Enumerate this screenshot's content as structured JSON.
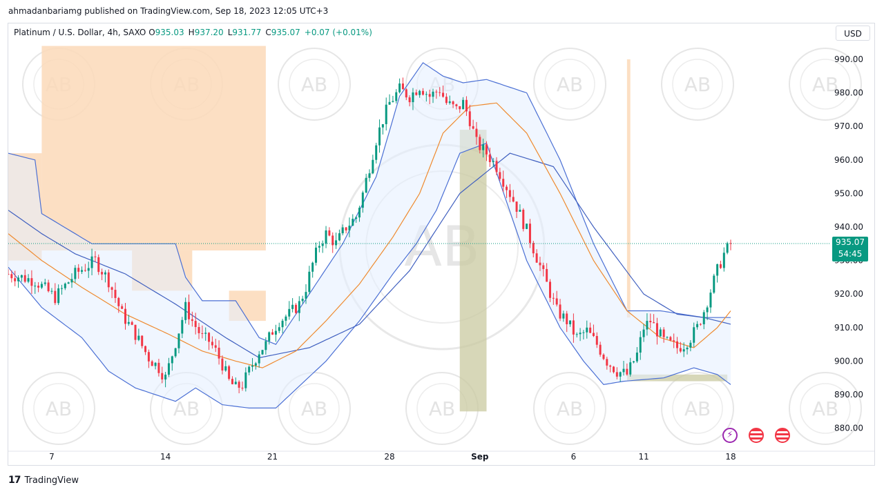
{
  "header": {
    "published": "ahmadanbariamg published on TradingView.com, Sep 18, 2023 12:05 UTC+3"
  },
  "legend": {
    "symbol": "Platinum / U.S. Dollar, 4h, SAXO",
    "open_label": "O",
    "open": "935.03",
    "high_label": "H",
    "high": "937.20",
    "low_label": "L",
    "low": "931.77",
    "close_label": "C",
    "close": "935.07",
    "change": "+0.07 (+0.01%)"
  },
  "currency_button": "USD",
  "price_tag": {
    "price": "935.07",
    "countdown": "54:45"
  },
  "footer": {
    "brand": "TradingView",
    "logo": "17"
  },
  "watermark": {
    "text": "AB"
  },
  "icons": [
    "lightning-icon",
    "us-flag-icon",
    "us-flag-icon"
  ],
  "colors": {
    "up": "#089981",
    "down": "#f23645",
    "band": "#4a6fd4",
    "ma": "#ef8a2f",
    "zone_peach": "#fcd9b8",
    "zone_olive": "#c9c9a0"
  },
  "chart_data": {
    "type": "candlestick",
    "title": "Platinum / U.S. Dollar, 4h, SAXO",
    "ylim": [
      876,
      998
    ],
    "y_ticks": [
      "990.00",
      "980.00",
      "970.00",
      "960.00",
      "950.00",
      "940.00",
      "930.00",
      "920.00",
      "910.00",
      "900.00",
      "890.00",
      "880.00"
    ],
    "x_ticks": [
      "7",
      "14",
      "21",
      "28",
      "Sep",
      "6",
      "11",
      "18"
    ],
    "anchors": [
      [
        0,
        926
      ],
      [
        8,
        924
      ],
      [
        14,
        919
      ],
      [
        20,
        926
      ],
      [
        26,
        930
      ],
      [
        30,
        924
      ],
      [
        34,
        914
      ],
      [
        38,
        908
      ],
      [
        42,
        901
      ],
      [
        45,
        898
      ],
      [
        47,
        895
      ],
      [
        49,
        902
      ],
      [
        51,
        909
      ],
      [
        53,
        916
      ],
      [
        55,
        912
      ],
      [
        58,
        907
      ],
      [
        60,
        906
      ],
      [
        62,
        903
      ],
      [
        64,
        899
      ],
      [
        66,
        894
      ],
      [
        68,
        892
      ],
      [
        70,
        893
      ],
      [
        73,
        899
      ],
      [
        75,
        903
      ],
      [
        77,
        905
      ],
      [
        79,
        909
      ],
      [
        81,
        912
      ],
      [
        84,
        914
      ],
      [
        87,
        917
      ],
      [
        89,
        922
      ],
      [
        91,
        929
      ],
      [
        93,
        935
      ],
      [
        95,
        938
      ],
      [
        98,
        935
      ],
      [
        101,
        940
      ],
      [
        104,
        943
      ],
      [
        106,
        950
      ],
      [
        108,
        958
      ],
      [
        110,
        966
      ],
      [
        112,
        972
      ],
      [
        114,
        977
      ],
      [
        117,
        981
      ],
      [
        120,
        979
      ],
      [
        123,
        982
      ],
      [
        126,
        979
      ],
      [
        129,
        981
      ],
      [
        131,
        977
      ],
      [
        134,
        975
      ],
      [
        136,
        977
      ],
      [
        138,
        972
      ],
      [
        140,
        965
      ],
      [
        143,
        962
      ],
      [
        146,
        958
      ],
      [
        149,
        952
      ],
      [
        152,
        946
      ],
      [
        155,
        939
      ],
      [
        158,
        931
      ],
      [
        161,
        923
      ],
      [
        164,
        915
      ],
      [
        167,
        912
      ],
      [
        170,
        907
      ],
      [
        173,
        909
      ],
      [
        176,
        905
      ],
      [
        179,
        900
      ],
      [
        182,
        897
      ],
      [
        185,
        896
      ],
      [
        188,
        902
      ],
      [
        190,
        910
      ],
      [
        192,
        912
      ],
      [
        194,
        909
      ],
      [
        196,
        906
      ],
      [
        198,
        905
      ],
      [
        200,
        904
      ],
      [
        202,
        905
      ],
      [
        204,
        907
      ],
      [
        206,
        910
      ],
      [
        208,
        915
      ],
      [
        210,
        921
      ],
      [
        212,
        927
      ],
      [
        214,
        932
      ],
      [
        216,
        935
      ]
    ],
    "bands": {
      "upper": [
        [
          0,
          962
        ],
        [
          8,
          960
        ],
        [
          10,
          944
        ],
        [
          25,
          935
        ],
        [
          38,
          935
        ],
        [
          50,
          935
        ],
        [
          53,
          925
        ],
        [
          58,
          918
        ],
        [
          68,
          918
        ],
        [
          75,
          907
        ],
        [
          80,
          905
        ],
        [
          88,
          917
        ],
        [
          100,
          935
        ],
        [
          110,
          955
        ],
        [
          117,
          979
        ],
        [
          124,
          989
        ],
        [
          130,
          985
        ],
        [
          136,
          983
        ],
        [
          143,
          984
        ],
        [
          155,
          980
        ],
        [
          165,
          960
        ],
        [
          175,
          935
        ],
        [
          185,
          915
        ],
        [
          195,
          915
        ],
        [
          208,
          913
        ],
        [
          216,
          913
        ]
      ],
      "middle": [
        [
          0,
          945
        ],
        [
          10,
          938
        ],
        [
          20,
          932
        ],
        [
          35,
          926
        ],
        [
          50,
          917
        ],
        [
          65,
          907
        ],
        [
          75,
          901
        ],
        [
          90,
          904
        ],
        [
          105,
          911
        ],
        [
          120,
          927
        ],
        [
          135,
          950
        ],
        [
          150,
          962
        ],
        [
          163,
          958
        ],
        [
          175,
          940
        ],
        [
          190,
          920
        ],
        [
          200,
          914
        ],
        [
          208,
          913
        ],
        [
          216,
          911
        ]
      ],
      "lower": [
        [
          0,
          928
        ],
        [
          10,
          916
        ],
        [
          22,
          907
        ],
        [
          30,
          897
        ],
        [
          38,
          892
        ],
        [
          50,
          888
        ],
        [
          56,
          892
        ],
        [
          64,
          887
        ],
        [
          72,
          886
        ],
        [
          80,
          886
        ],
        [
          95,
          900
        ],
        [
          105,
          912
        ],
        [
          115,
          926
        ],
        [
          122,
          935
        ],
        [
          128,
          945
        ],
        [
          135,
          962
        ],
        [
          143,
          965
        ],
        [
          155,
          930
        ],
        [
          165,
          910
        ],
        [
          172,
          900
        ],
        [
          178,
          893
        ],
        [
          184,
          894
        ],
        [
          196,
          895
        ],
        [
          205,
          898
        ],
        [
          212,
          896
        ],
        [
          216,
          893
        ]
      ],
      "ma": [
        [
          0,
          938
        ],
        [
          10,
          930
        ],
        [
          22,
          922
        ],
        [
          35,
          914
        ],
        [
          48,
          908
        ],
        [
          58,
          903
        ],
        [
          68,
          900
        ],
        [
          76,
          898
        ],
        [
          86,
          903
        ],
        [
          95,
          912
        ],
        [
          105,
          923
        ],
        [
          115,
          937
        ],
        [
          123,
          950
        ],
        [
          130,
          968
        ],
        [
          138,
          976
        ],
        [
          146,
          977
        ],
        [
          155,
          968
        ],
        [
          165,
          950
        ],
        [
          175,
          930
        ],
        [
          185,
          915
        ],
        [
          195,
          907
        ],
        [
          205,
          904
        ],
        [
          212,
          910
        ],
        [
          216,
          915
        ]
      ]
    },
    "zones": [
      {
        "color": "peach",
        "x": [
          0,
          10
        ],
        "y": [
          930,
          962
        ]
      },
      {
        "color": "peach",
        "x": [
          10,
          77
        ],
        "y": [
          933,
          994
        ]
      },
      {
        "color": "peach",
        "x": [
          37,
          55
        ],
        "y": [
          921,
          933
        ]
      },
      {
        "color": "peach",
        "x": [
          66,
          77
        ],
        "y": [
          912,
          921
        ]
      },
      {
        "color": "olive",
        "x": [
          135,
          143
        ],
        "y": [
          885,
          969
        ]
      },
      {
        "color": "peach",
        "x": [
          185,
          186
        ],
        "y": [
          913,
          990
        ]
      },
      {
        "color": "olive",
        "x": [
          185,
          215
        ],
        "y": [
          894,
          896
        ]
      }
    ],
    "last_price": 935.07
  }
}
